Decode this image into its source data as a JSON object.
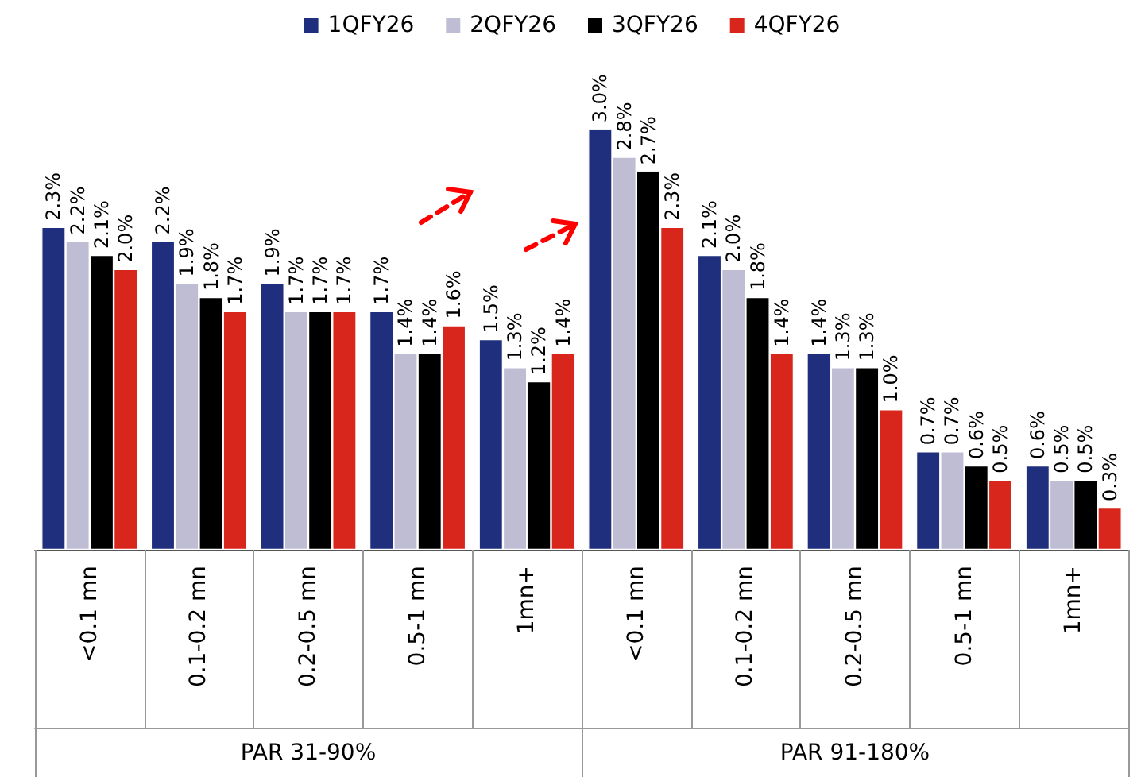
{
  "chart_data": {
    "type": "bar",
    "categories": [
      "<0.1 mn",
      "0.1-0.2 mn",
      "0.2-0.5 mn",
      "0.5-1 mn",
      "1mn+",
      "<0.1 mn",
      "0.1-0.2 mn",
      "0.2-0.5 mn",
      "0.5-1 mn",
      "1mn+"
    ],
    "series": [
      {
        "name": "1QFY26",
        "color": "#1f2f7d",
        "values": [
          2.3,
          2.2,
          1.9,
          1.7,
          1.5,
          3.0,
          2.1,
          1.4,
          0.7,
          0.6
        ],
        "value_labels": [
          "2.3%",
          "2.2%",
          "1.9%",
          "1.7%",
          "1.5%",
          "3.0%",
          "2.1%",
          "1.4%",
          "0.7%",
          "0.6%"
        ]
      },
      {
        "name": "2QFY26",
        "color": "#bfbdd4",
        "values": [
          2.2,
          1.9,
          1.7,
          1.4,
          1.3,
          2.8,
          2.0,
          1.3,
          0.7,
          0.5
        ],
        "value_labels": [
          "2.2%",
          "1.9%",
          "1.7%",
          "1.4%",
          "1.3%",
          "2.8%",
          "2.0%",
          "1.3%",
          "0.7%",
          "0.5%"
        ]
      },
      {
        "name": "3QFY26",
        "color": "#000000",
        "values": [
          2.1,
          1.8,
          1.7,
          1.4,
          1.2,
          2.7,
          1.8,
          1.3,
          0.6,
          0.5
        ],
        "value_labels": [
          "2.1%",
          "1.8%",
          "1.7%",
          "1.4%",
          "1.2%",
          "2.7%",
          "1.8%",
          "1.3%",
          "0.6%",
          "0.5%"
        ]
      },
      {
        "name": "4QFY26",
        "color": "#d9261c",
        "values": [
          2.0,
          1.7,
          1.7,
          1.6,
          1.4,
          2.3,
          1.4,
          1.0,
          0.5,
          0.3
        ],
        "value_labels": [
          "2.0%",
          "1.7%",
          "1.7%",
          "1.6%",
          "1.4%",
          "2.3%",
          "1.4%",
          "1.0%",
          "0.5%",
          "0.3%"
        ]
      }
    ],
    "annotations": [
      "PAR 31-90%",
      "PAR 91-180%"
    ],
    "legend": "top"
  }
}
